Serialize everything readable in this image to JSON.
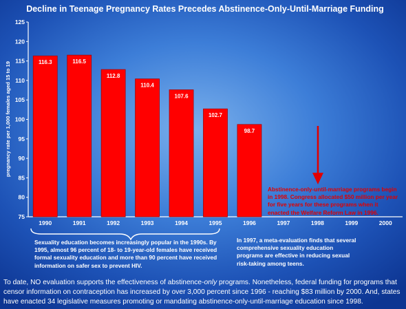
{
  "chart_data": {
    "type": "bar",
    "title": "Decline in Teenage Pregnancy Rates Precedes Abstinence-Only-Until-Marriage Funding",
    "ylabel": "pregnancy rate per 1,000 females aged 15 to 19",
    "xlabel": "",
    "categories": [
      "1990",
      "1991",
      "1992",
      "1993",
      "1994",
      "1995",
      "1996",
      "1997",
      "1998",
      "1999",
      "2000"
    ],
    "values": [
      116.3,
      116.5,
      112.8,
      110.4,
      107.6,
      102.7,
      98.7,
      null,
      null,
      null,
      null
    ],
    "labels": [
      "116.3",
      "116.5",
      "112.8",
      "110.4",
      "107.6",
      "102.7",
      "98.7"
    ],
    "ylim": [
      75,
      125
    ],
    "yticks": [
      75,
      80,
      85,
      90,
      95,
      100,
      105,
      110,
      115,
      120,
      125
    ],
    "grid": false,
    "bar_color": "#ff0000",
    "annotations": {
      "education_note": "Sexuality education becomes increasingly popular in the 1990s. By 1995, almost 96 percent of 18- to 19-year-old females have received formal sexuality education and more than 90 percent have received information on safer sex to prevent HIV.",
      "meta_note": "In 1997, a meta-evaluation finds that several comprehensive sexuality education programs are effective in reducing sexual risk-taking among teens.",
      "funding_note": "Abstinence-only-until-marriage programs begin in 1998. Congress allocated $50 million per year for five years for these programs when it enacted the Welfare Reform Law in 1996."
    }
  },
  "footer": {
    "part1": "To date, NO evaluation supports the effectiveness of abstinence-",
    "emph": "only",
    "part2": " programs. Nonetheless, federal funding for programs that censor information on contraception has increased by over 3,000 percent since 1996 - reaching $83 million by 2000. And, states have enacted 34 legislative measures promoting or mandating abstinence-only-until-marriage education since 1998."
  },
  "colors": {
    "background": "#3d7ed8",
    "bars": "#ff0000",
    "arrow": "#e00000",
    "text": "#ffffff"
  }
}
